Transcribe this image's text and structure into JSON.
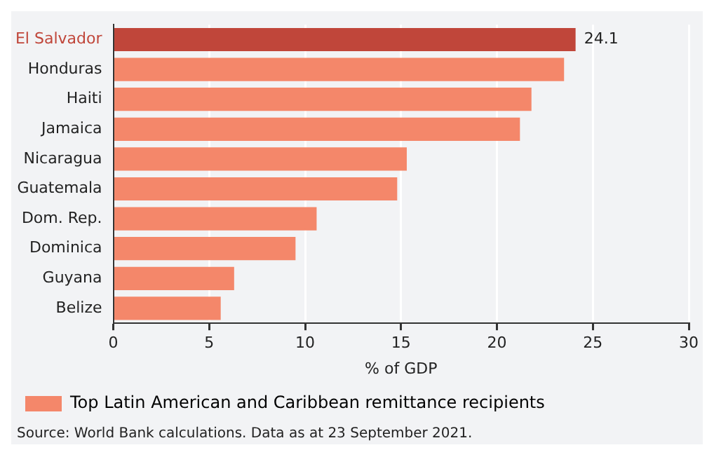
{
  "chart_data": {
    "type": "bar",
    "orientation": "horizontal",
    "categories": [
      "El Salvador",
      "Honduras",
      "Haiti",
      "Jamaica",
      "Nicaragua",
      "Guatemala",
      "Dom. Rep.",
      "Dominica",
      "Guyana",
      "Belize"
    ],
    "series": [
      {
        "name": "Top Latin American and Caribbean remittance recipients",
        "color": "#f4876a",
        "colors": [
          "#c0463a",
          "#f4876a",
          "#f4876a",
          "#f4876a",
          "#f4876a",
          "#f4876a",
          "#f4876a",
          "#f4876a",
          "#f4876a",
          "#f4876a"
        ],
        "values": [
          24.1,
          23.5,
          21.8,
          21.2,
          15.3,
          14.8,
          10.6,
          9.5,
          6.3,
          5.6
        ],
        "value_labels": [
          "24.1",
          null,
          null,
          null,
          null,
          null,
          null,
          null,
          null,
          null
        ]
      }
    ],
    "xlabel": "% of GDP",
    "xlim": [
      0,
      30
    ],
    "xticks": [
      0,
      5,
      10,
      15,
      20,
      25,
      30
    ],
    "grid": "x",
    "legend": "bottom left",
    "annotations": [
      "Source: World Bank calculations. Data as at 23 September 2021."
    ]
  }
}
